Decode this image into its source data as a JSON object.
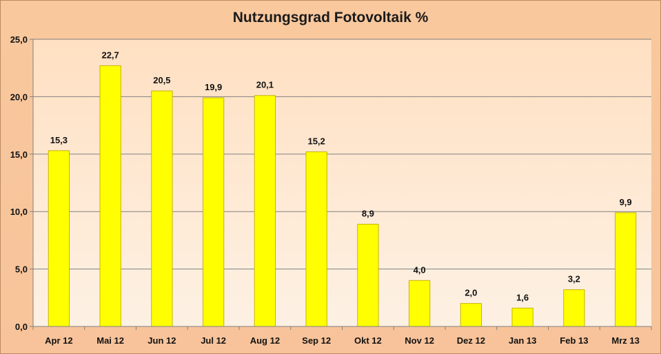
{
  "chart_data": {
    "type": "bar",
    "title": "Nutzungsgrad Fotovoltaik %",
    "categories": [
      "Apr 12",
      "Mai 12",
      "Jun 12",
      "Jul 12",
      "Aug 12",
      "Sep 12",
      "Okt 12",
      "Nov 12",
      "Dez 12",
      "Jan 13",
      "Feb 13",
      "Mrz 13"
    ],
    "values": [
      15.3,
      22.7,
      20.5,
      19.9,
      20.1,
      15.2,
      8.9,
      4.0,
      2.0,
      1.6,
      3.2,
      9.9
    ],
    "value_labels": [
      "15,3",
      "22,7",
      "20,5",
      "19,9",
      "20,1",
      "15,2",
      "8,9",
      "4,0",
      "2,0",
      "1,6",
      "3,2",
      "9,9"
    ],
    "y_ticks": [
      0,
      5,
      10,
      15,
      20,
      25
    ],
    "y_tick_labels": [
      "0,0",
      "5,0",
      "10,0",
      "15,0",
      "20,0",
      "25,0"
    ],
    "ylim": [
      0,
      25
    ],
    "xlabel": "",
    "ylabel": "",
    "grid": true,
    "legend": "none",
    "colors": {
      "bar_fill": "#ffff00",
      "bar_stroke": "#c8b400",
      "plot_background_top": "#ffe0c2",
      "plot_background_bottom": "#fdf1e4",
      "chart_background": "#f9c79a",
      "gridline": "#808080"
    }
  }
}
